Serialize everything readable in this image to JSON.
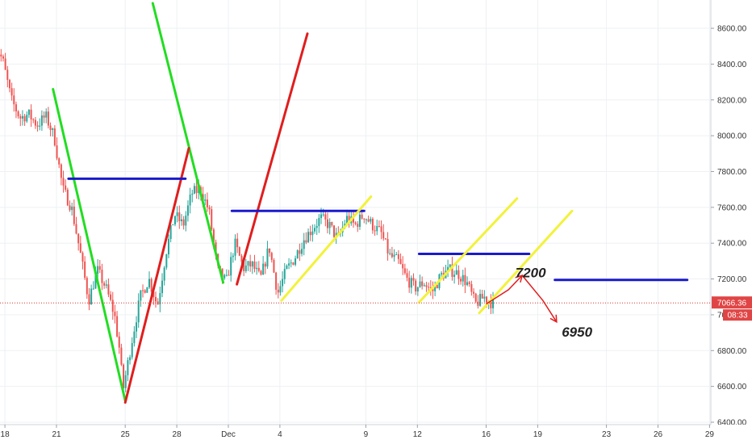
{
  "chart_data": {
    "type": "candlestick",
    "title": "",
    "xlabel": "",
    "ylabel": "",
    "ylim": [
      6400,
      8800
    ],
    "grid": true,
    "y_ticks": [
      6400,
      6600,
      6800,
      7000,
      7200,
      7400,
      7600,
      7800,
      8000,
      8200,
      8400,
      8600
    ],
    "y_tick_labels": [
      "6400.00",
      "6600.00",
      "6800.00",
      "7000.00",
      "7200.00",
      "7400.00",
      "7600.00",
      "7800.00",
      "8000.00",
      "8200.00",
      "8400.00",
      "8600.00"
    ],
    "x_tick_labels": [
      "18",
      "21",
      "25",
      "28",
      "Dec",
      "4",
      "9",
      "12",
      "16",
      "19",
      "23",
      "26",
      "29"
    ],
    "x_tick_days": [
      -13,
      -10,
      -6,
      -3,
      0,
      3,
      8,
      11,
      15,
      18,
      22,
      25,
      28
    ],
    "current_price": 7066.36,
    "current_price_label": "7066.36",
    "countdown_label": "08:33",
    "colors": {
      "up": "#26a69a",
      "down": "#ef5350",
      "green_line": "#22dd22",
      "red_line": "#e01e1e",
      "blue_line": "#1a1acc",
      "yellow_line": "#f2f23a",
      "price_line": "#d93030",
      "grid": "#eef0f4"
    },
    "price_path": [
      [
        -13.6,
        8540
      ],
      [
        -13.0,
        8420
      ],
      [
        -12.5,
        8200
      ],
      [
        -12.0,
        8100
      ],
      [
        -11.5,
        8120
      ],
      [
        -11.0,
        8060
      ],
      [
        -10.5,
        8110
      ],
      [
        -10.0,
        7990
      ],
      [
        -9.5,
        7700
      ],
      [
        -9.0,
        7600
      ],
      [
        -8.5,
        7350
      ],
      [
        -8.0,
        7080
      ],
      [
        -7.5,
        7250
      ],
      [
        -7.0,
        7150
      ],
      [
        -6.5,
        7000
      ],
      [
        -6.2,
        6800
      ],
      [
        -6.0,
        6580
      ],
      [
        -5.5,
        6850
      ],
      [
        -5.0,
        7100
      ],
      [
        -4.5,
        7200
      ],
      [
        -4.0,
        7050
      ],
      [
        -3.5,
        7350
      ],
      [
        -3.0,
        7560
      ],
      [
        -2.5,
        7500
      ],
      [
        -2.0,
        7680
      ],
      [
        -1.5,
        7700
      ],
      [
        -1.0,
        7580
      ],
      [
        -0.5,
        7250
      ],
      [
        0.0,
        7180
      ],
      [
        0.5,
        7400
      ],
      [
        1.0,
        7260
      ],
      [
        1.5,
        7280
      ],
      [
        2.0,
        7200
      ],
      [
        2.5,
        7380
      ],
      [
        3.0,
        7120
      ],
      [
        3.5,
        7250
      ],
      [
        4.0,
        7320
      ],
      [
        4.5,
        7420
      ],
      [
        5.0,
        7480
      ],
      [
        5.5,
        7540
      ],
      [
        6.0,
        7500
      ],
      [
        6.5,
        7420
      ],
      [
        7.0,
        7540
      ],
      [
        7.5,
        7500
      ],
      [
        8.0,
        7560
      ],
      [
        8.5,
        7500
      ],
      [
        9.0,
        7460
      ],
      [
        9.5,
        7330
      ],
      [
        10.0,
        7300
      ],
      [
        10.5,
        7200
      ],
      [
        11.0,
        7150
      ],
      [
        11.5,
        7180
      ],
      [
        12.0,
        7130
      ],
      [
        12.5,
        7220
      ],
      [
        13.0,
        7250
      ],
      [
        13.5,
        7230
      ],
      [
        14.0,
        7180
      ],
      [
        14.5,
        7060
      ],
      [
        15.0,
        7100
      ],
      [
        15.4,
        7070
      ]
    ],
    "overlays": [
      {
        "color": "green_line",
        "points": [
          [
            -10.2,
            8260
          ],
          [
            -6.0,
            6520
          ]
        ]
      },
      {
        "color": "green_line",
        "points": [
          [
            -4.4,
            8740
          ],
          [
            -0.3,
            7180
          ]
        ]
      },
      {
        "color": "red_line",
        "points": [
          [
            -6.0,
            6510
          ],
          [
            -2.3,
            7930
          ]
        ]
      },
      {
        "color": "red_line",
        "points": [
          [
            0.5,
            7170
          ],
          [
            4.6,
            8570
          ]
        ]
      },
      {
        "color": "blue_line",
        "points": [
          [
            -9.3,
            7760
          ],
          [
            -2.5,
            7760
          ]
        ]
      },
      {
        "color": "blue_line",
        "points": [
          [
            0.2,
            7580
          ],
          [
            7.9,
            7580
          ]
        ]
      },
      {
        "color": "blue_line",
        "points": [
          [
            11.1,
            7340
          ],
          [
            17.5,
            7340
          ]
        ]
      },
      {
        "color": "blue_line",
        "points": [
          [
            19.0,
            7195
          ],
          [
            26.7,
            7195
          ]
        ]
      },
      {
        "color": "yellow_line",
        "points": [
          [
            3.1,
            7080
          ],
          [
            8.3,
            7660
          ]
        ]
      },
      {
        "color": "yellow_line",
        "points": [
          [
            11.1,
            7070
          ],
          [
            16.8,
            7650
          ]
        ]
      },
      {
        "color": "yellow_line",
        "points": [
          [
            14.6,
            7010
          ],
          [
            20.0,
            7580
          ]
        ]
      }
    ],
    "arrows": [
      {
        "points": [
          [
            15.0,
            7060
          ],
          [
            16.3,
            7140
          ],
          [
            17.1,
            7220
          ]
        ]
      },
      {
        "points": [
          [
            17.1,
            7220
          ],
          [
            18.3,
            7080
          ],
          [
            19.1,
            6960
          ]
        ]
      }
    ],
    "annotations": [
      {
        "text": "7200",
        "x": 16.7,
        "y": 7200
      },
      {
        "text": "6950",
        "x": 19.4,
        "y": 6870
      }
    ]
  }
}
